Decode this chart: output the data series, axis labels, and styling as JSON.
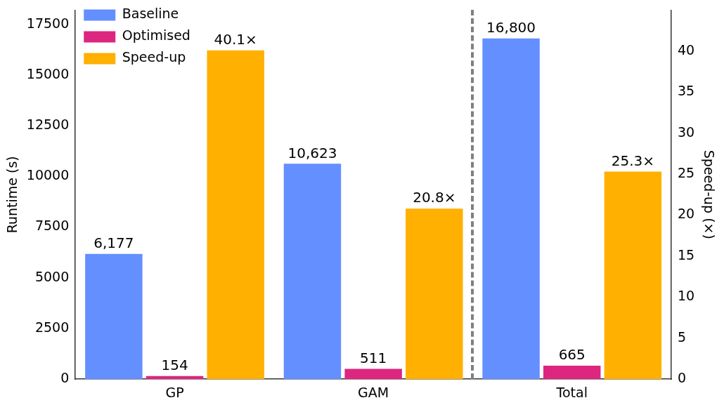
{
  "chart_data": {
    "type": "bar",
    "categories": [
      "GP",
      "GAM",
      "Total"
    ],
    "ylabel": "Runtime (s)",
    "y2label": "Speed-up (×)",
    "series": [
      {
        "name": "Baseline",
        "color": "#648fff",
        "values": [
          6177,
          10623,
          16800
        ],
        "value_labels": [
          "6,177",
          "10,623",
          "16,800"
        ]
      },
      {
        "name": "Optimised",
        "color": "#dc267f",
        "values": [
          154,
          511,
          665
        ],
        "value_labels": [
          "154",
          "511",
          "665"
        ]
      },
      {
        "name": "Speed-up",
        "color": "#ffb000",
        "values": [
          40.1,
          20.8,
          25.3
        ],
        "axis": "y2",
        "value_labels": [
          "40.1×",
          "20.8×",
          "25.3×"
        ]
      }
    ],
    "ylim": [
      0,
      18200
    ],
    "yticks": [
      0,
      2500,
      5000,
      7500,
      10000,
      12500,
      15000,
      17500
    ],
    "y2lim": [
      0,
      45
    ],
    "y2ticks": [
      0,
      5,
      10,
      15,
      20,
      25,
      30,
      35,
      40
    ],
    "legend": "top left",
    "grid": false
  }
}
